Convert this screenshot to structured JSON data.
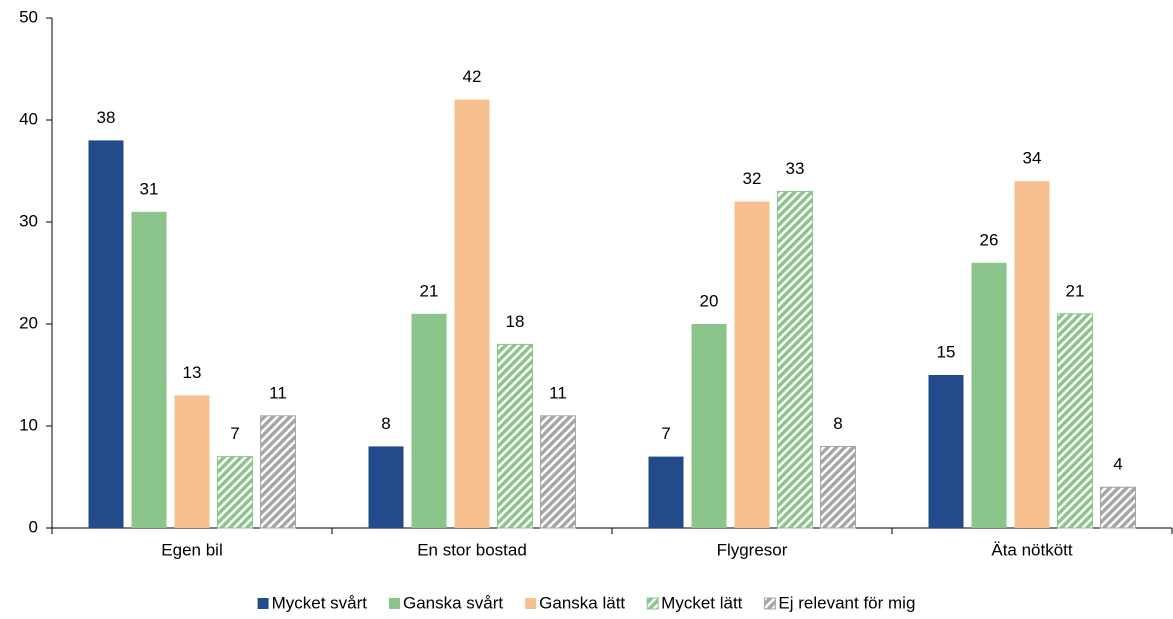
{
  "chart_data": {
    "type": "bar",
    "categories": [
      "Egen bil",
      "En stor bostad",
      "Flygresor",
      "Äta nötkött"
    ],
    "series": [
      {
        "name": "Mycket svårt",
        "color": "#234a8a",
        "hatch": false,
        "values": [
          38,
          8,
          7,
          15
        ]
      },
      {
        "name": "Ganska svårt",
        "color": "#8cc58b",
        "hatch": false,
        "values": [
          31,
          21,
          20,
          26
        ]
      },
      {
        "name": "Ganska lätt",
        "color": "#f6c18f",
        "hatch": false,
        "values": [
          13,
          42,
          32,
          34
        ]
      },
      {
        "name": "Mycket lätt",
        "color": "#8cc58b",
        "hatch": true,
        "values": [
          7,
          18,
          33,
          21
        ]
      },
      {
        "name": "Ej relevant för mig",
        "color": "#a6a6a6",
        "hatch": true,
        "values": [
          11,
          11,
          8,
          4
        ]
      }
    ],
    "ylim": [
      0,
      50
    ],
    "yticks": [
      0,
      10,
      20,
      30,
      40,
      50
    ],
    "grid": false,
    "legend": "bottom"
  }
}
